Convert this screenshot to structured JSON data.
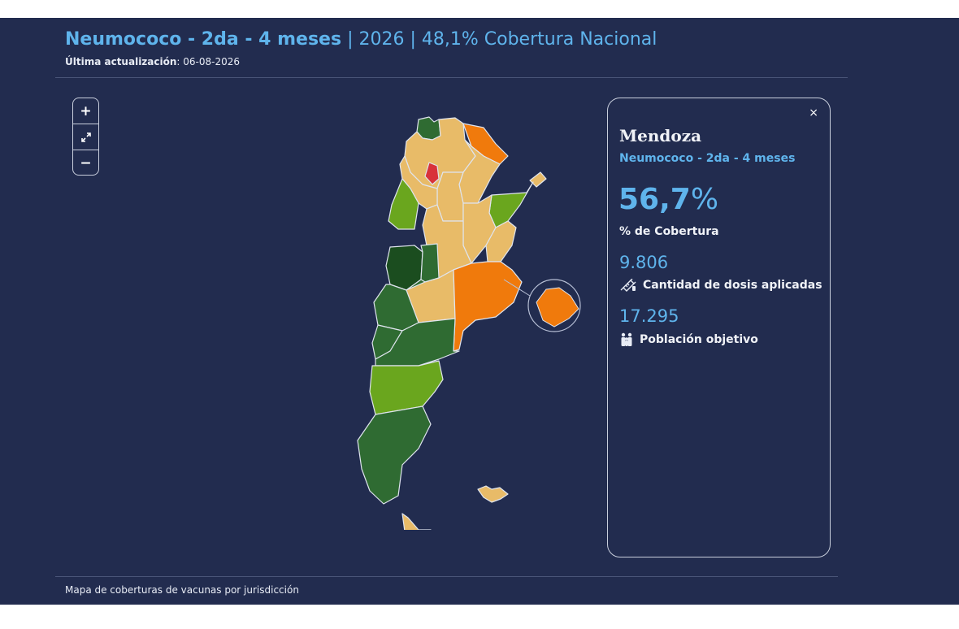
{
  "header": {
    "vaccine": "Neumococo - 2da - 4 meses",
    "sep1": " | ",
    "year": "2026",
    "sep2": " | ",
    "coverage": "48,1% Cobertura Nacional",
    "updated_label": "Última actualización",
    "updated_value": ": 06-08-2026"
  },
  "zoom": {
    "in": "+",
    "reset": "⤢",
    "out": "−"
  },
  "info_card": {
    "close": "×",
    "province": "Mendoza",
    "vaccine": "Neumococo - 2da - 4 meses",
    "percent_value": "56,7",
    "percent_sign": "%",
    "percent_label": "% de Cobertura",
    "doses_value": "9.806",
    "doses_label": "Cantidad de dosis aplicadas",
    "population_value": "17.295",
    "population_label": "Población objetivo"
  },
  "footer": {
    "caption": "Mapa de coberturas de vacunas por jurisdicción"
  },
  "colors": {
    "background": "#222c4f",
    "accent": "#5fb4ec",
    "dark_green": "#2f6b32",
    "darkest_green": "#1b4d1f",
    "mid_green": "#3f8b36",
    "light_green": "#6aa61e",
    "tan": "#e8bb68",
    "orange": "#f07a0c",
    "red": "#d8323a"
  },
  "icons": {
    "zoom_reset": "expand-icon",
    "doses": "syringe-icon",
    "population": "family-icon",
    "close": "close-icon"
  }
}
